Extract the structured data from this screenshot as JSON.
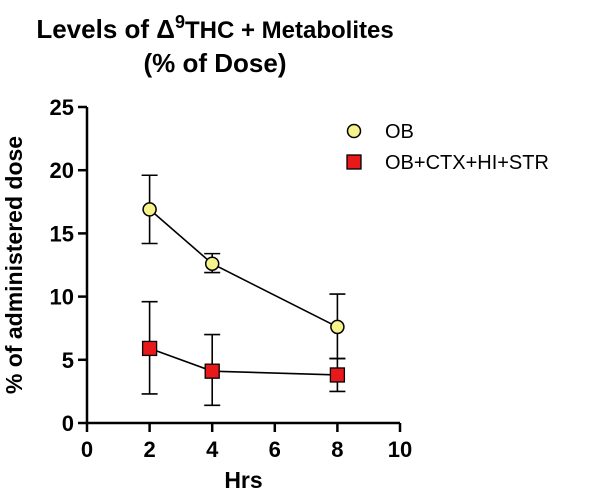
{
  "chart_data": {
    "type": "scatter",
    "title": {
      "prefix": "Levels of ",
      "delta": "Δ",
      "sup": "9",
      "suffix": "THC + Metabolites",
      "line2": "(% of Dose)"
    },
    "xlabel": "Hrs",
    "ylabel": "% of administered dose",
    "xlim": [
      0,
      10
    ],
    "ylim": [
      0,
      25
    ],
    "xticks": [
      0,
      2,
      4,
      6,
      8,
      10
    ],
    "yticks": [
      0,
      5,
      10,
      15,
      20,
      25
    ],
    "grid": false,
    "legend_position": "top-right",
    "series": [
      {
        "name": "OB",
        "marker": "circle",
        "color": "#f6f38a",
        "x": [
          2,
          4,
          8
        ],
        "y": [
          16.9,
          12.6,
          7.6
        ],
        "err_upper": [
          19.6,
          13.4,
          10.2
        ],
        "err_lower": [
          14.2,
          11.9,
          5.1
        ]
      },
      {
        "name": "OB+CTX+HI+STR",
        "marker": "square",
        "color": "#e8191b",
        "x": [
          2,
          4,
          8
        ],
        "y": [
          5.9,
          4.1,
          3.8
        ],
        "err_upper": [
          9.6,
          7.0,
          5.1
        ],
        "err_lower": [
          2.3,
          1.4,
          2.5
        ]
      }
    ]
  }
}
